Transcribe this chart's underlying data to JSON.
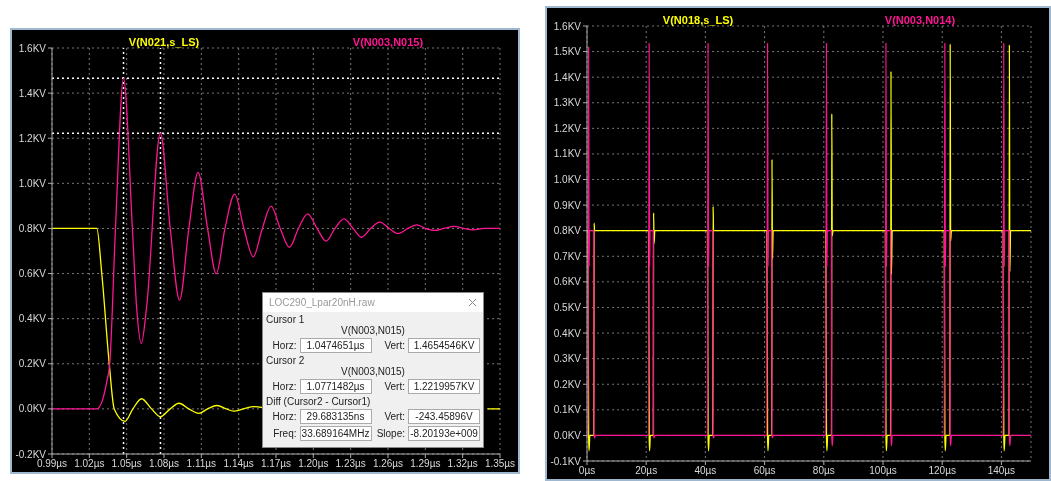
{
  "chart_data": [
    {
      "type": "line",
      "legend": "top",
      "grid": true,
      "xlim": [
        0.99,
        1.35
      ],
      "xticks": [
        {
          "value": 0.99,
          "label": "0.99µs"
        },
        {
          "value": 1.02,
          "label": "1.02µs"
        },
        {
          "value": 1.05,
          "label": "1.05µs"
        },
        {
          "value": 1.08,
          "label": "1.08µs"
        },
        {
          "value": 1.11,
          "label": "1.11µs"
        },
        {
          "value": 1.14,
          "label": "1.14µs"
        },
        {
          "value": 1.17,
          "label": "1.17µs"
        },
        {
          "value": 1.2,
          "label": "1.20µs"
        },
        {
          "value": 1.23,
          "label": "1.23µs"
        },
        {
          "value": 1.26,
          "label": "1.26µs"
        },
        {
          "value": 1.29,
          "label": "1.29µs"
        },
        {
          "value": 1.32,
          "label": "1.32µs"
        },
        {
          "value": 1.35,
          "label": "1.35µs"
        }
      ],
      "ylim": [
        -0.2,
        1.6
      ],
      "yticks": [
        {
          "value": -0.2,
          "label": "-0.2KV"
        },
        {
          "value": 0,
          "label": "0.0KV"
        },
        {
          "value": 0.2,
          "label": "0.2KV"
        },
        {
          "value": 0.4,
          "label": "0.4KV"
        },
        {
          "value": 0.6,
          "label": "0.6KV"
        },
        {
          "value": 0.8,
          "label": "0.8KV"
        },
        {
          "value": 1.0,
          "label": "1.0KV"
        },
        {
          "value": 1.2,
          "label": "1.2KV"
        },
        {
          "value": 1.4,
          "label": "1.4KV"
        },
        {
          "value": 1.6,
          "label": "1.6KV"
        }
      ],
      "series": [
        {
          "name": "V(N021,s_LS)",
          "color": "#ffff00",
          "x": [
            0.99,
            1.026,
            1.03,
            1.036,
            1.04,
            1.0487,
            1.055,
            1.062,
            1.07,
            1.077,
            1.085,
            1.092,
            1.1,
            1.108,
            1.115,
            1.1226,
            1.13,
            1.136,
            1.144,
            1.152,
            1.16,
            1.2,
            1.34,
            1.35
          ],
          "values": [
            0.8,
            0.8,
            0.6,
            0.2,
            0,
            -0.055,
            0,
            0.045,
            0,
            -0.035,
            0,
            0.025,
            0,
            -0.02,
            0,
            0.015,
            0,
            -0.01,
            0,
            0.01,
            0.005,
            null,
            0,
            0
          ]
        },
        {
          "name": "V(N003,N015)",
          "color": "#ff1493",
          "x": [
            0.99,
            1.026,
            1.03,
            1.034,
            1.0364,
            1.041,
            1.0475,
            1.0546,
            1.058,
            1.0618,
            1.066,
            1.0771,
            1.085,
            1.0925,
            1.1,
            1.1074,
            1.115,
            1.122,
            1.129,
            1.1368,
            1.1442,
            1.1517,
            1.159,
            1.166,
            1.1734,
            1.1808,
            1.188,
            1.1955,
            1.203,
            1.2102,
            1.2174,
            1.2246,
            1.232,
            1.2387,
            1.246,
            1.2534,
            1.261,
            1.268,
            1.276,
            1.2833,
            1.29,
            1.2974,
            1.305,
            1.3135,
            1.321,
            1.328,
            1.338,
            1.35
          ],
          "values": [
            0,
            0,
            0.03,
            0.12,
            0.2,
            0.8,
            1.465,
            0.8,
            0.45,
            0.29,
            0.45,
            1.222,
            0.8,
            0.482,
            0.8,
            1.049,
            0.8,
            0.599,
            0.8,
            0.952,
            0.8,
            0.674,
            0.8,
            0.899,
            0.8,
            0.716,
            0.8,
            0.865,
            0.8,
            0.744,
            0.8,
            0.842,
            0.8,
            0.761,
            0.8,
            0.828,
            0.8,
            0.777,
            0.8,
            0.816,
            0.8,
            0.791,
            0.8,
            0.809,
            0.8,
            0.794,
            0.8,
            0.8
          ]
        }
      ],
      "ref_lines": [
        {
          "axis": "x",
          "value": 1.0474651,
          "color": "#ffffff",
          "line_style": "dotted"
        },
        {
          "axis": "x",
          "value": 1.0771482,
          "color": "#ffffff",
          "line_style": "dotted"
        },
        {
          "axis": "y",
          "value": 1.4654546,
          "color": "#ffffff",
          "line_style": "dotted"
        },
        {
          "axis": "y",
          "value": 1.2219957,
          "color": "#ffffff",
          "line_style": "dotted"
        }
      ],
      "annotations": [
        "LOC290_Lpar20nH.raw",
        "Cursor 1",
        "V(N003,N015)",
        "Horz:",
        "1.0474651µs",
        "Vert:",
        "1.4654546KV",
        "Cursor 2",
        "V(N003,N015)",
        "Horz:",
        "1.0771482µs",
        "Vert:",
        "1.2219957KV",
        "Diff (Cursor2 - Cursor1)",
        "Horz:",
        "29.683135ns",
        "Vert:",
        "-243.45896V",
        "Freq:",
        "33.689164MHz",
        "Slope:",
        "-8.20193e+009"
      ]
    },
    {
      "type": "line",
      "legend": "top",
      "grid": true,
      "xlim": [
        0,
        150
      ],
      "xticks": [
        {
          "value": 0,
          "label": "0µs"
        },
        {
          "value": 20,
          "label": "20µs"
        },
        {
          "value": 40,
          "label": "40µs"
        },
        {
          "value": 60,
          "label": "60µs"
        },
        {
          "value": 80,
          "label": "80µs"
        },
        {
          "value": 100,
          "label": "100µs"
        },
        {
          "value": 120,
          "label": "120µs"
        },
        {
          "value": 140,
          "label": "140µs"
        }
      ],
      "ylim": [
        -0.1,
        1.6
      ],
      "yticks": [
        {
          "value": -0.1,
          "label": "-0.1KV"
        },
        {
          "value": 0,
          "label": "0.0KV"
        },
        {
          "value": 0.1,
          "label": "0.1KV"
        },
        {
          "value": 0.2,
          "label": "0.2KV"
        },
        {
          "value": 0.3,
          "label": "0.3KV"
        },
        {
          "value": 0.4,
          "label": "0.4KV"
        },
        {
          "value": 0.5,
          "label": "0.5KV"
        },
        {
          "value": 0.6,
          "label": "0.6KV"
        },
        {
          "value": 0.7,
          "label": "0.7KV"
        },
        {
          "value": 0.8,
          "label": "0.8KV"
        },
        {
          "value": 0.9,
          "label": "0.9KV"
        },
        {
          "value": 1.0,
          "label": "1.0KV"
        },
        {
          "value": 1.1,
          "label": "1.1KV"
        },
        {
          "value": 1.2,
          "label": "1.2KV"
        },
        {
          "value": 1.3,
          "label": "1.3KV"
        },
        {
          "value": 1.4,
          "label": "1.4KV"
        },
        {
          "value": 1.5,
          "label": "1.5KV"
        },
        {
          "value": 1.6,
          "label": "1.6KV"
        }
      ],
      "series": [
        {
          "name": "V(N018,s_LS)",
          "color": "#ffff00",
          "x": [
            0,
            0.35,
            0.55,
            0.7,
            0.95,
            2.3,
            2.4,
            2.55,
            2.8,
            20.8,
            21,
            21.15,
            21.4,
            22.4,
            22.5,
            22.65,
            22.9,
            40.7,
            40.9,
            41.05,
            41.3,
            42.5,
            42.6,
            42.75,
            43.0,
            60.8,
            61,
            61.15,
            61.4,
            62.4,
            62.5,
            62.65,
            62.9,
            80.7,
            80.9,
            81.05,
            81.3,
            82.6,
            82.7,
            82.85,
            83.1,
            100.8,
            101,
            101.15,
            101.4,
            102.6,
            102.7,
            102.85,
            103.1,
            120.7,
            120.9,
            121.05,
            121.3,
            122.6,
            122.7,
            122.85,
            123.1,
            140.6,
            140.8,
            140.95,
            141.2,
            142.6,
            142.7,
            142.85,
            143.1,
            150
          ],
          "values": [
            0.8,
            0.8,
            0,
            -0.06,
            0,
            0,
            0.83,
            0.8,
            0.8,
            0.8,
            0,
            -0.06,
            0,
            0,
            0.87,
            0.75,
            0.8,
            0.8,
            0,
            -0.06,
            0,
            0,
            0.895,
            0.8,
            0.8,
            0.8,
            0,
            -0.06,
            0,
            0,
            1.079,
            0.69,
            0.8,
            0.8,
            0,
            -0.06,
            0,
            0,
            1.257,
            0.78,
            0.8,
            0.8,
            0,
            -0.06,
            0,
            0,
            1.423,
            0.63,
            0.8,
            0.8,
            0,
            -0.06,
            0,
            0,
            1.53,
            0.76,
            0.8,
            0.8,
            0,
            -0.06,
            0,
            0,
            1.527,
            0.64,
            0.8,
            0.8
          ]
        },
        {
          "name": "V(N003,N014)",
          "color": "#ff1493",
          "x": [
            0,
            0.35,
            0.55,
            0.7,
            0.85,
            2.3,
            2.4,
            2.55,
            2.8,
            20.8,
            21,
            21.15,
            21.3,
            22.4,
            22.5,
            22.65,
            22.9,
            40.7,
            40.9,
            41.05,
            41.2,
            42.5,
            42.6,
            42.75,
            43.0,
            60.8,
            61,
            61.15,
            61.3,
            62.4,
            62.5,
            62.65,
            62.9,
            80.7,
            80.9,
            81.05,
            81.2,
            82.6,
            82.7,
            82.85,
            83.1,
            100.8,
            101,
            101.15,
            101.3,
            102.6,
            102.7,
            102.85,
            103.1,
            120.7,
            120.9,
            121.05,
            121.2,
            122.6,
            122.7,
            122.85,
            123.1,
            140.6,
            140.8,
            140.95,
            141.1,
            142.6,
            142.7,
            142.85,
            143.1,
            150
          ],
          "values": [
            0,
            0,
            1.52,
            0.66,
            0.8,
            0.8,
            0,
            -0.01,
            0,
            0,
            1.535,
            0.66,
            0.8,
            0.8,
            0,
            -0.01,
            0,
            0,
            1.535,
            0.66,
            0.8,
            0.8,
            0,
            -0.01,
            0,
            0,
            1.535,
            0.66,
            0.8,
            0.8,
            0,
            -0.01,
            0,
            0,
            1.535,
            0.66,
            0.8,
            0.8,
            0,
            -0.04,
            0,
            0,
            1.535,
            0.66,
            0.8,
            0.8,
            0,
            -0.04,
            0,
            0,
            1.535,
            0.66,
            0.8,
            0.8,
            0,
            -0.04,
            0,
            0,
            1.535,
            0.66,
            0.8,
            0.8,
            0,
            -0.04,
            0,
            0
          ]
        }
      ]
    }
  ]
}
